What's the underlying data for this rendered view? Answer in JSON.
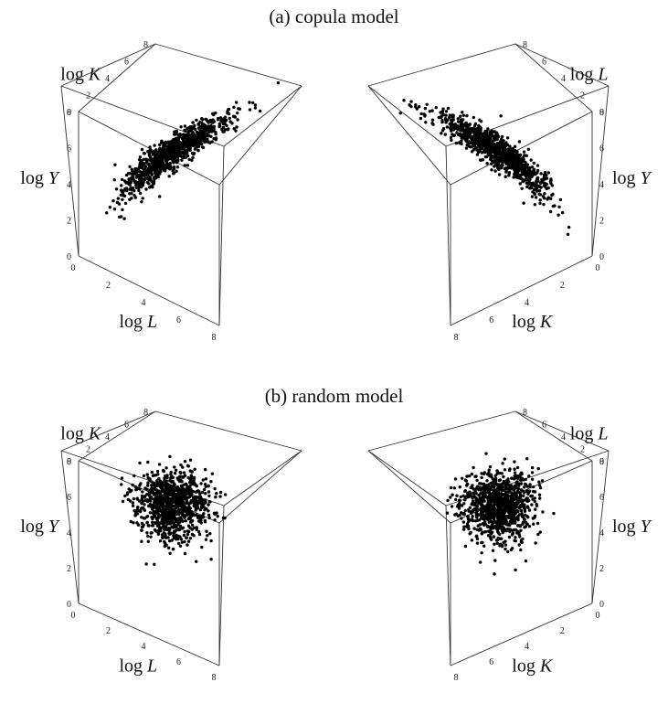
{
  "titles": {
    "a": "(a) copula model",
    "b": "(b) random model"
  },
  "axis_words": {
    "log": "log"
  },
  "chart_data": [
    {
      "type": "scatter",
      "title": "(a) copula model",
      "view": "left",
      "axes": {
        "x": "L",
        "y": "K",
        "z": "Y"
      },
      "xlim": [
        0,
        8
      ],
      "ylim": [
        0,
        8
      ],
      "zlim": [
        0,
        8
      ],
      "ticks": [
        "0",
        "2",
        "4",
        "6",
        "8"
      ],
      "cloud": {
        "model": "copula",
        "center": [
          4.2,
          4.2,
          4.2
        ],
        "spread": 1.0,
        "correlation": 0.95,
        "n": 1000
      }
    },
    {
      "type": "scatter",
      "title": "(a) copula model",
      "view": "right",
      "axes": {
        "x": "K",
        "y": "L",
        "z": "Y"
      },
      "xlim": [
        0,
        8
      ],
      "ylim": [
        0,
        8
      ],
      "zlim": [
        0,
        8
      ],
      "ticks": [
        "0",
        "2",
        "4",
        "6",
        "8"
      ],
      "cloud": {
        "model": "copula",
        "center": [
          4.2,
          4.2,
          4.2
        ],
        "spread": 1.0,
        "correlation": 0.95,
        "n": 1000
      }
    },
    {
      "type": "scatter",
      "title": "(b) random model",
      "view": "left",
      "axes": {
        "x": "L",
        "y": "K",
        "z": "Y"
      },
      "xlim": [
        0,
        8
      ],
      "ylim": [
        0,
        8
      ],
      "zlim": [
        0,
        8
      ],
      "ticks": [
        "0",
        "2",
        "4",
        "6",
        "8"
      ],
      "cloud": {
        "model": "random",
        "center": [
          4.2,
          4.2,
          4.2
        ],
        "spread": 0.9,
        "correlation": 0.0,
        "n": 1000
      }
    },
    {
      "type": "scatter",
      "title": "(b) random model",
      "view": "right",
      "axes": {
        "x": "K",
        "y": "L",
        "z": "Y"
      },
      "xlim": [
        0,
        8
      ],
      "ylim": [
        0,
        8
      ],
      "zlim": [
        0,
        8
      ],
      "ticks": [
        "0",
        "2",
        "4",
        "6",
        "8"
      ],
      "cloud": {
        "model": "random",
        "center": [
          4.2,
          4.2,
          4.2
        ],
        "spread": 0.9,
        "correlation": 0.0,
        "n": 1000
      }
    }
  ]
}
